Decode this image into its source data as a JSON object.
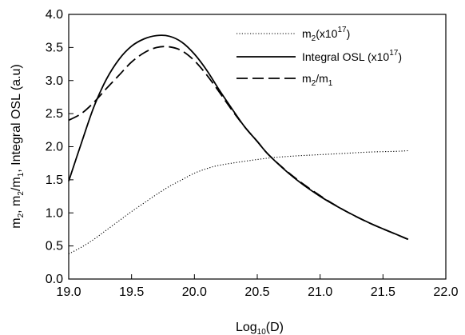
{
  "chart_data": {
    "type": "line",
    "xlabel": "Log10(D)",
    "ylabel": "m2, m2/m1, Integral OSL (a.u)",
    "xlim": [
      19.0,
      22.0
    ],
    "ylim": [
      0.0,
      4.0
    ],
    "xticks": [
      19.0,
      19.5,
      20.0,
      20.5,
      21.0,
      21.5,
      22.0
    ],
    "yticks": [
      0.0,
      0.5,
      1.0,
      1.5,
      2.0,
      2.5,
      3.0,
      3.5,
      4.0
    ],
    "xtick_labels": [
      "19.0",
      "19.5",
      "20.0",
      "20.5",
      "21.0",
      "21.5",
      "22.0"
    ],
    "ytick_labels": [
      "0.0",
      "0.5",
      "1.0",
      "1.5",
      "2.0",
      "2.5",
      "3.0",
      "3.5",
      "4.0"
    ],
    "grid": false,
    "legend_position": "top-right",
    "series": [
      {
        "name": "m2(x10^17)",
        "style": "dotted",
        "x": [
          19.0,
          19.1,
          19.2,
          19.3,
          19.4,
          19.5,
          19.6,
          19.7,
          19.8,
          19.9,
          20.0,
          20.1,
          20.2,
          20.4,
          20.6,
          20.8,
          21.0,
          21.2,
          21.4,
          21.6,
          21.7
        ],
        "y": [
          0.38,
          0.48,
          0.6,
          0.74,
          0.88,
          1.02,
          1.15,
          1.28,
          1.4,
          1.5,
          1.6,
          1.67,
          1.72,
          1.78,
          1.83,
          1.86,
          1.88,
          1.9,
          1.92,
          1.93,
          1.94
        ]
      },
      {
        "name": "Integral OSL (x10^17)",
        "style": "solid",
        "x": [
          19.0,
          19.1,
          19.2,
          19.3,
          19.4,
          19.5,
          19.6,
          19.7,
          19.8,
          19.9,
          20.0,
          20.1,
          20.2,
          20.3,
          20.4,
          20.5,
          20.6,
          20.8,
          21.0,
          21.2,
          21.4,
          21.6,
          21.7
        ],
        "y": [
          1.48,
          2.05,
          2.6,
          3.02,
          3.32,
          3.52,
          3.63,
          3.68,
          3.67,
          3.58,
          3.4,
          3.15,
          2.85,
          2.57,
          2.3,
          2.08,
          1.86,
          1.52,
          1.25,
          1.03,
          0.84,
          0.68,
          0.6
        ]
      },
      {
        "name": "m2/m1",
        "style": "dashed",
        "x": [
          19.0,
          19.1,
          19.2,
          19.3,
          19.4,
          19.5,
          19.6,
          19.7,
          19.8,
          19.9,
          20.0,
          20.1,
          20.2,
          20.3,
          20.4,
          20.5,
          20.6,
          20.8,
          21.0,
          21.2,
          21.4,
          21.6,
          21.7
        ],
        "y": [
          2.4,
          2.5,
          2.67,
          2.88,
          3.08,
          3.28,
          3.42,
          3.5,
          3.51,
          3.45,
          3.3,
          3.08,
          2.82,
          2.55,
          2.3,
          2.08,
          1.86,
          1.53,
          1.26,
          1.03,
          0.84,
          0.68,
          0.6
        ]
      }
    ]
  },
  "legend": {
    "items": [
      {
        "base": "m",
        "sub": "2",
        "rest": "(x10",
        "sup": "17",
        "end": ")"
      },
      {
        "base": "Integral OSL (x10",
        "sub": "",
        "rest": "",
        "sup": "17",
        "end": ")"
      },
      {
        "base": "m",
        "sub": "2",
        "rest": "/m",
        "sup": "",
        "end": "",
        "sub2": "1"
      }
    ]
  },
  "axis_titles": {
    "x": {
      "pre": "Log",
      "sub": "10",
      "post": "(D)"
    },
    "y": {
      "p1": "m",
      "s1": "2",
      "p2": ", m",
      "s2": "2",
      "p3": "/m",
      "s3": "1",
      "p4": ", Integral OSL (a.u)"
    }
  }
}
